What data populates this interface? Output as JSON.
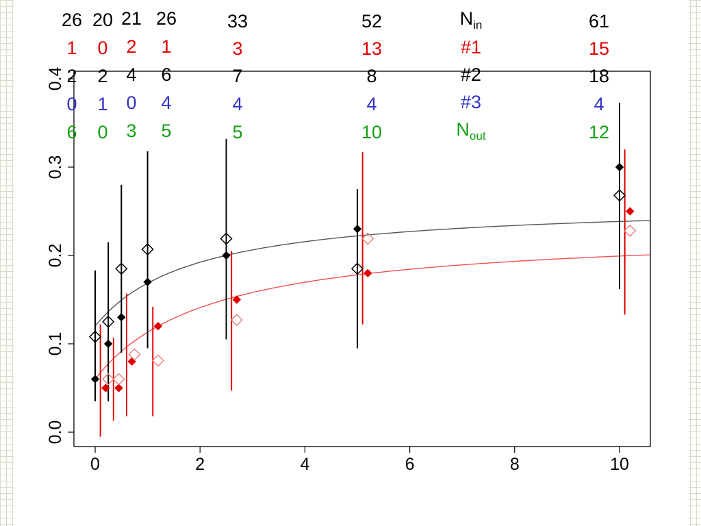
{
  "chart_data": {
    "type": "scatter",
    "xlim": [
      0,
      10.6
    ],
    "ylim": [
      0,
      0.4
    ],
    "x_ticks": [
      0,
      2,
      4,
      6,
      8,
      10
    ],
    "y_ticks": [
      0.0,
      0.1,
      0.2,
      0.3,
      0.4
    ],
    "x_tick_labels": [
      "0",
      "2",
      "4",
      "6",
      "8",
      "10"
    ],
    "y_tick_labels": [
      "0.0",
      "0.1",
      "0.2",
      "0.3",
      "0.4"
    ],
    "grid": false,
    "series": [
      {
        "color": "#000000",
        "marker": "filled-diamond",
        "x": [
          0,
          0.25,
          0.5,
          1,
          2.5,
          5,
          10
        ],
        "y": [
          0.06,
          0.1,
          0.13,
          0.17,
          0.2,
          0.23,
          0.3
        ],
        "y_low": [
          0.035,
          0.035,
          0.09,
          0.095,
          0.105,
          0.095,
          0.162
        ],
        "y_high": [
          0.183,
          0.215,
          0.28,
          0.318,
          0.332,
          0.275,
          0.373
        ]
      },
      {
        "color": "#000000",
        "marker": "open-diamond",
        "x": [
          0,
          0.25,
          0.5,
          1,
          2.5,
          5,
          10
        ],
        "y": [
          0.108,
          0.125,
          0.185,
          0.207,
          0.219,
          0.185,
          0.268
        ]
      },
      {
        "color": "#e00000",
        "marker": "filled-diamond",
        "x": [
          0.2,
          0.45,
          0.7,
          1.2,
          2.7,
          5.2,
          10.2
        ],
        "y": [
          0.05,
          0.05,
          0.08,
          0.12,
          0.15,
          0.18,
          0.25
        ],
        "y_low": [
          -0.005,
          0.013,
          0.018,
          0.018,
          0.047,
          0.122,
          0.133
        ],
        "y_high": [
          0.122,
          0.107,
          0.157,
          0.142,
          0.205,
          0.317,
          0.32
        ],
        "bar_x": [
          0.1,
          0.35,
          0.6,
          1.1,
          2.6,
          5.1,
          10.1
        ]
      },
      {
        "color": "#f08080",
        "marker": "open-diamond",
        "x": [
          0.25,
          0.45,
          0.75,
          1.2,
          2.7,
          5.2,
          10.2
        ],
        "y": [
          0.06,
          0.06,
          0.088,
          0.081,
          0.127,
          0.219,
          0.228
        ]
      }
    ],
    "fit_curves": [
      {
        "color": "#555555",
        "y0": 0.12,
        "y_asym": 0.261,
        "x_half": 1.9
      },
      {
        "color": "#f05050",
        "y0": 0.06,
        "y_asym": 0.23,
        "x_half": 2.2
      }
    ]
  },
  "table": {
    "row_labels": [
      "N",
      "#1",
      "#2",
      "#3",
      "N"
    ],
    "row_label_subs": [
      "in",
      "",
      "",
      "",
      "out"
    ],
    "columns": [
      {
        "n_in": "26",
        "r1": "1",
        "r2": "2",
        "r3": "0",
        "n_out": "6"
      },
      {
        "n_in": "20",
        "r1": "0",
        "r2": "2",
        "r3": "1",
        "n_out": "0"
      },
      {
        "n_in": "21",
        "r1": "2",
        "r2": "4",
        "r3": "0",
        "n_out": "3"
      },
      {
        "n_in": "26",
        "r1": "1",
        "r2": "6",
        "r3": "4",
        "n_out": "5"
      },
      {
        "n_in": "33",
        "r1": "3",
        "r2": "7",
        "r3": "4",
        "n_out": "5"
      },
      {
        "n_in": "52",
        "r1": "13",
        "r2": "8",
        "r3": "4",
        "n_out": "10"
      },
      {
        "n_in": "61",
        "r1": "15",
        "r2": "18",
        "r3": "4",
        "n_out": "12"
      }
    ]
  }
}
